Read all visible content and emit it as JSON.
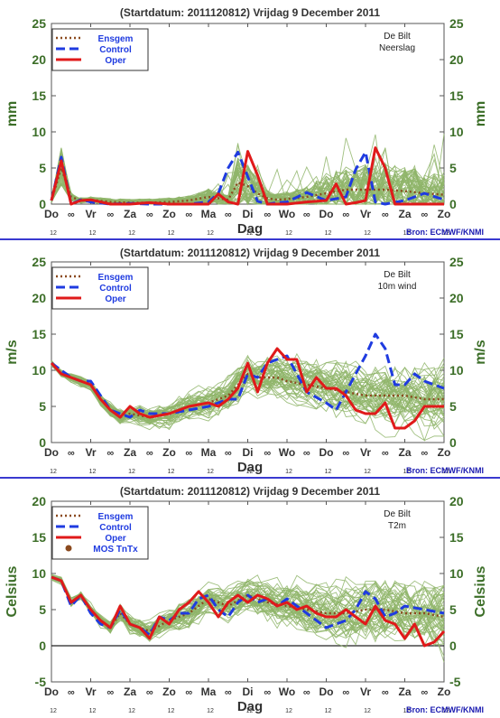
{
  "colors": {
    "ensemble": "#8fb56a",
    "ensgem": "#8b4a1e",
    "control": "#1f3be0",
    "oper": "#e01a1a",
    "axis_label": "#3c6e28",
    "title": "#333333",
    "source": "#1a1ab0",
    "separator": "#3a3ad0"
  },
  "days": [
    "Do",
    "Vr",
    "Za",
    "Zo",
    "Ma",
    "Di",
    "Wo",
    "Do",
    "Vr",
    "Za",
    "Zo"
  ],
  "hours": [
    "12",
    "12",
    "12",
    "12",
    "12",
    "12",
    "12",
    "12",
    "12",
    "12",
    "12"
  ],
  "source": "Bron: ECMWF/KNMI",
  "panels": [
    {
      "title": "(Startdatum: 2011120812)   Vrijdag    9 December  2011",
      "ylabel": "mm",
      "xlabel": "Dag",
      "station": "De Bilt",
      "variable": "Neerslag",
      "legend": [
        "Ensgem",
        "Control",
        "Oper"
      ],
      "yticks": [
        "0",
        "5",
        "10",
        "15",
        "20",
        "25"
      ],
      "show_source": true,
      "chart_data": {
        "type": "line",
        "ylim": [
          0,
          25
        ],
        "x_unit": "days after Do 12 UTC",
        "series": [
          {
            "name": "Ensgem",
            "x": [
              0,
              0.25,
              0.5,
              0.75,
              1,
              1.5,
              2,
              2.5,
              3,
              3.5,
              4,
              4.25,
              4.5,
              4.75,
              5,
              5.25,
              5.5,
              5.75,
              6,
              6.5,
              7,
              7.5,
              8,
              8.5,
              9,
              9.5,
              10
            ],
            "y": [
              0.5,
              5,
              1,
              0.5,
              0.6,
              0.3,
              0.2,
              0.2,
              0.3,
              0.5,
              1,
              0.8,
              0.6,
              3,
              2.5,
              1.5,
              0.8,
              0.6,
              0.7,
              1,
              1.5,
              2,
              2,
              2,
              1.8,
              1.5,
              1.3
            ]
          },
          {
            "name": "Control",
            "x": [
              0,
              0.25,
              0.5,
              0.75,
              1,
              1.5,
              2,
              2.5,
              3,
              3.5,
              4,
              4.25,
              4.5,
              4.75,
              5,
              5.25,
              5.5,
              5.75,
              6,
              6.5,
              7,
              7.5,
              7.75,
              8,
              8.25,
              8.5,
              9,
              9.5,
              10
            ],
            "y": [
              0.5,
              6.5,
              0,
              0.6,
              0.3,
              0,
              0.1,
              0,
              0,
              0,
              0.3,
              1.5,
              5,
              7.2,
              3.8,
              0.4,
              0,
              0.2,
              0.3,
              1.6,
              0.5,
              1,
              4.8,
              7.2,
              0.3,
              0,
              0.5,
              1.5,
              0.6
            ]
          },
          {
            "name": "Oper",
            "x": [
              0,
              0.25,
              0.5,
              0.75,
              1,
              1.5,
              2,
              2.5,
              3,
              3.5,
              4,
              4.25,
              4.5,
              4.75,
              5,
              5.25,
              5.5,
              5.75,
              6,
              6.5,
              7,
              7.25,
              7.5,
              7.75,
              8,
              8.25,
              8.5,
              8.75,
              9,
              9.5,
              10
            ],
            "y": [
              0.5,
              6,
              0,
              0.5,
              0.6,
              0,
              0,
              0.2,
              0,
              0,
              0,
              1.4,
              0.3,
              0,
              7.3,
              4,
              0,
              0,
              0,
              0.3,
              0.5,
              2.8,
              0,
              0.2,
              0.5,
              7.8,
              5,
              0,
              0,
              0,
              0
            ]
          }
        ]
      }
    },
    {
      "title": "(Startdatum: 2011120812)   Vrijdag    9 December  2011",
      "ylabel": "m/s",
      "xlabel": "Dag",
      "station": "De Bilt",
      "variable": "10m wind",
      "legend": [
        "Ensgem",
        "Control",
        "Oper"
      ],
      "yticks": [
        "0",
        "5",
        "10",
        "15",
        "20",
        "25"
      ],
      "show_source": true,
      "chart_data": {
        "type": "line",
        "ylim": [
          0,
          25
        ],
        "x_unit": "days after Do 12 UTC",
        "series": [
          {
            "name": "Ensgem",
            "x": [
              0,
              0.25,
              0.5,
              0.75,
              1,
              1.25,
              1.5,
              1.75,
              2,
              2.5,
              3,
              3.5,
              4,
              4.5,
              5,
              5.25,
              5.5,
              5.75,
              6,
              6.5,
              7,
              7.5,
              8,
              8.5,
              9,
              9.5,
              10
            ],
            "y": [
              11,
              9.5,
              9,
              8.5,
              8,
              6,
              4.5,
              3.5,
              4,
              3.5,
              4,
              5,
              5.5,
              6.5,
              9.5,
              9,
              9,
              9,
              8.5,
              8,
              7.5,
              7,
              6.5,
              6.5,
              6.5,
              6,
              6
            ]
          },
          {
            "name": "Control",
            "x": [
              0,
              0.25,
              0.5,
              0.75,
              1,
              1.25,
              1.5,
              1.75,
              2,
              2.25,
              2.5,
              3,
              3.5,
              4,
              4.25,
              4.5,
              4.75,
              5,
              5.25,
              5.5,
              5.75,
              6,
              6.25,
              6.5,
              7,
              7.25,
              7.5,
              7.75,
              8,
              8.25,
              8.5,
              8.75,
              9,
              9.25,
              9.5,
              10
            ],
            "y": [
              11,
              10,
              9,
              8.5,
              8.5,
              6.5,
              4.5,
              4,
              3.5,
              4.5,
              4,
              4,
              4.5,
              5,
              5.5,
              6,
              6,
              9.5,
              9,
              11,
              11.5,
              12,
              9.5,
              7,
              5.5,
              4.5,
              7,
              9.5,
              12,
              15,
              13,
              8,
              8,
              9.5,
              8.5,
              7.5
            ]
          },
          {
            "name": "Oper",
            "x": [
              0,
              0.25,
              0.5,
              0.75,
              1,
              1.25,
              1.5,
              1.75,
              2,
              2.25,
              2.5,
              3,
              3.5,
              4,
              4.25,
              4.5,
              4.75,
              5,
              5.25,
              5.5,
              5.75,
              6,
              6.25,
              6.5,
              6.75,
              7,
              7.25,
              7.5,
              7.75,
              8,
              8.25,
              8.5,
              8.75,
              9,
              9.25,
              9.5,
              10
            ],
            "y": [
              11,
              9.5,
              9,
              8.5,
              8,
              6,
              4.5,
              3.5,
              5,
              4,
              3.5,
              4,
              5,
              5.5,
              5,
              6,
              7.5,
              11,
              7,
              11,
              13,
              11.5,
              11.5,
              7,
              9,
              7.5,
              7.5,
              6.5,
              4.5,
              4,
              4,
              5.5,
              2,
              2,
              3,
              5,
              5
            ]
          }
        ]
      }
    },
    {
      "title": "(Startdatum: 2011120812)   Vrijdag    9 December  2011",
      "ylabel": "Celsius",
      "xlabel": "Dag",
      "station": "De Bilt",
      "variable": "T2m",
      "legend": [
        "Ensgem",
        "Control",
        "Oper",
        "MOS TnTx"
      ],
      "yticks": [
        "-5",
        "0",
        "5",
        "10",
        "15",
        "20"
      ],
      "show_source": true,
      "chart_data": {
        "type": "line",
        "ylim": [
          -5,
          20
        ],
        "x_unit": "days after Do 12 UTC",
        "series": [
          {
            "name": "Ensgem",
            "x": [
              0,
              0.25,
              0.5,
              0.75,
              1,
              1.25,
              1.5,
              1.75,
              2,
              2.5,
              3,
              3.5,
              4,
              4.5,
              5,
              5.5,
              6,
              6.5,
              7,
              7.5,
              8,
              8.5,
              9,
              9.5,
              10
            ],
            "y": [
              9.5,
              9,
              6,
              7,
              5,
              3.5,
              2.5,
              4.5,
              3,
              2,
              3.5,
              4.5,
              6.5,
              5.5,
              7,
              6,
              5.5,
              5,
              4.5,
              4.5,
              5,
              5,
              4.5,
              4.5,
              4
            ]
          },
          {
            "name": "Control",
            "x": [
              0,
              0.25,
              0.5,
              0.75,
              1,
              1.25,
              1.5,
              1.75,
              2,
              2.25,
              2.5,
              2.75,
              3,
              3.25,
              3.5,
              3.75,
              4,
              4.25,
              4.5,
              4.75,
              5,
              5.25,
              5.5,
              5.75,
              6,
              6.5,
              7,
              7.5,
              7.75,
              8,
              8.25,
              8.5,
              8.75,
              9,
              9.5,
              10
            ],
            "y": [
              9.5,
              9,
              5.5,
              7,
              4.5,
              3,
              2.5,
              5,
              3,
              2.5,
              1.5,
              4,
              3.5,
              4.5,
              4.5,
              6.5,
              7,
              5,
              4,
              6,
              7,
              6,
              6.5,
              5.5,
              6.5,
              4.5,
              2.5,
              3.5,
              5,
              7.5,
              6.5,
              4,
              4.5,
              5.5,
              5,
              4.5
            ]
          },
          {
            "name": "Oper",
            "x": [
              0,
              0.25,
              0.5,
              0.75,
              1,
              1.25,
              1.5,
              1.75,
              2,
              2.25,
              2.5,
              2.75,
              3,
              3.25,
              3.5,
              3.75,
              4,
              4.25,
              4.5,
              4.75,
              5,
              5.25,
              5.5,
              5.75,
              6,
              6.25,
              6.5,
              6.75,
              7,
              7.25,
              7.5,
              7.75,
              8,
              8.25,
              8.5,
              8.75,
              9,
              9.25,
              9.5,
              9.75,
              10
            ],
            "y": [
              9.5,
              9,
              6,
              7,
              5,
              3.5,
              2.5,
              5.5,
              3,
              2.5,
              1,
              4,
              3,
              5,
              6,
              7.5,
              6,
              4,
              6,
              7,
              6,
              7,
              6.5,
              5.5,
              6,
              5,
              5.5,
              4.5,
              4,
              4,
              5,
              4,
              3,
              5.5,
              3.5,
              3,
              1,
              3,
              0,
              0.5,
              2
            ]
          },
          {
            "name": "MOS TnTx",
            "x": [],
            "y": []
          }
        ]
      }
    }
  ]
}
